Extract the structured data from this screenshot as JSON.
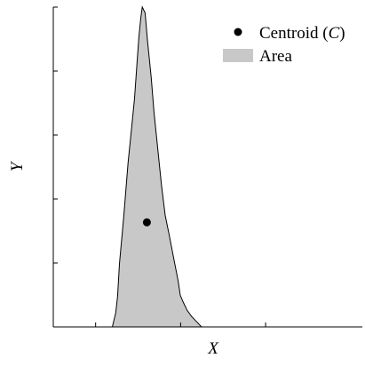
{
  "chart_data": {
    "type": "area",
    "xlabel": "X",
    "ylabel": "Y",
    "xlim": [
      0,
      1
    ],
    "ylim": [
      0,
      1
    ],
    "legend_position": "top-right",
    "legend": [
      {
        "kind": "marker",
        "label_main": "Centroid (",
        "label_italic": "C",
        "label_tail": ")"
      },
      {
        "kind": "patch",
        "label": "Area"
      }
    ],
    "series": [
      {
        "kind": "area",
        "color": "#c8c8c8",
        "edge_color": "#000000",
        "points": [
          [
            0.191,
            0.0
          ],
          [
            0.202,
            0.044
          ],
          [
            0.208,
            0.096
          ],
          [
            0.214,
            0.197
          ],
          [
            0.228,
            0.344
          ],
          [
            0.242,
            0.513
          ],
          [
            0.254,
            0.628
          ],
          [
            0.263,
            0.715
          ],
          [
            0.271,
            0.826
          ],
          [
            0.277,
            0.907
          ],
          [
            0.283,
            0.965
          ],
          [
            0.288,
            1.0
          ],
          [
            0.297,
            0.982
          ],
          [
            0.305,
            0.895
          ],
          [
            0.317,
            0.779
          ],
          [
            0.326,
            0.672
          ],
          [
            0.339,
            0.547
          ],
          [
            0.35,
            0.444
          ],
          [
            0.362,
            0.349
          ],
          [
            0.376,
            0.284
          ],
          [
            0.39,
            0.213
          ],
          [
            0.404,
            0.144
          ],
          [
            0.411,
            0.099
          ],
          [
            0.42,
            0.078
          ],
          [
            0.433,
            0.052
          ],
          [
            0.447,
            0.033
          ],
          [
            0.467,
            0.013
          ],
          [
            0.48,
            0.0
          ]
        ]
      },
      {
        "kind": "centroid",
        "color": "#000000",
        "points": [
          [
            0.303,
            0.327
          ]
        ]
      }
    ]
  }
}
